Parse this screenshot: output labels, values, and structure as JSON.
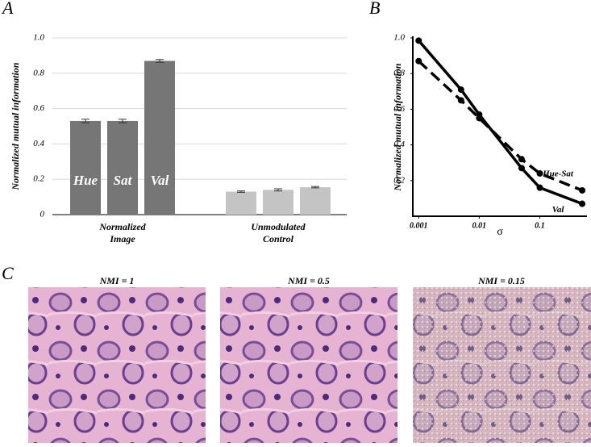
{
  "chart_data": [
    {
      "type": "bar",
      "panel_label": "A",
      "ylabel": "Normalized mutual information",
      "categories": [
        [
          "Normalized",
          "Image"
        ],
        [
          "Unmodulated",
          "Control"
        ]
      ],
      "category_colors": [
        "#767676",
        "#c4c4c4"
      ],
      "series": [
        {
          "name": "Hue",
          "values": [
            0.53,
            0.13
          ],
          "errors": [
            0.01,
            0.004
          ]
        },
        {
          "name": "Sat",
          "values": [
            0.53,
            0.14
          ],
          "errors": [
            0.01,
            0.006
          ]
        },
        {
          "name": "Val",
          "values": [
            0.87,
            0.155
          ],
          "errors": [
            0.008,
            0.004
          ]
        }
      ],
      "ylim": [
        0,
        1.0
      ],
      "yticks": [
        0,
        0.2,
        0.4,
        0.6,
        0.8,
        {
          "value": 1.0,
          "label": "1.0"
        }
      ],
      "grid": true
    },
    {
      "type": "line",
      "panel_label": "B",
      "ylabel": "Normalized mutual information",
      "xlabel": "σ",
      "x": [
        0.001,
        0.005,
        0.01,
        0.05,
        0.1,
        0.5
      ],
      "xscale": "log",
      "series": [
        {
          "name": "Val",
          "color": "#000000",
          "linestyle": "solid",
          "values": [
            0.985,
            0.71,
            0.57,
            0.27,
            0.16,
            0.07
          ]
        },
        {
          "name": "Hue-Sat",
          "color": "#000000",
          "linestyle": "dashed",
          "values": [
            0.87,
            0.65,
            0.55,
            0.32,
            0.24,
            0.145
          ]
        }
      ],
      "xlim": [
        0.0008,
        0.6
      ],
      "xticks": [
        0.001,
        0.01,
        0.1
      ],
      "ylim": [
        0,
        1.0
      ],
      "yticks": [
        0.2,
        0.4,
        0.6,
        0.8,
        {
          "value": 1.0,
          "label": "1.0"
        }
      ],
      "grid": false
    }
  ],
  "images": {
    "panel_label": "C",
    "titles": [
      "NMI = 1",
      "NMI = 0.5",
      "NMI = 0.15"
    ]
  }
}
